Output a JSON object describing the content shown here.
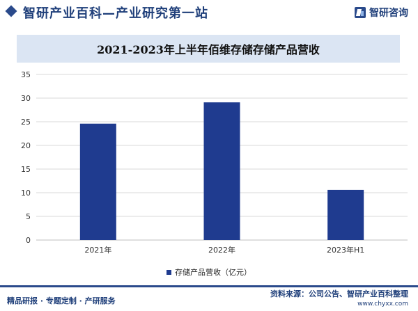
{
  "header": {
    "title": "智研产业百科—产业研究第一站",
    "brand_name": "智研咨询"
  },
  "chart_data": {
    "type": "bar",
    "title": "2021-2023年上半年佰维存储存储产品营收",
    "categories": [
      "2021年",
      "2022年",
      "2023年H1"
    ],
    "series": [
      {
        "name": "存储产品营收（亿元）",
        "values": [
          24.6,
          29.1,
          10.6
        ]
      }
    ],
    "ylim": [
      0,
      35
    ],
    "yticks": [
      0,
      5,
      10,
      15,
      20,
      25,
      30,
      35
    ],
    "xlabel": "",
    "ylabel": "",
    "grid": true,
    "legend_position": "bottom",
    "bar_color": "#1f3b8f",
    "grid_color": "#d9d9d9"
  },
  "footer": {
    "left_text": "精品研报 · 专题定制 · 产研服务",
    "source_text": "资料来源：公司公告、智研产业百科整理",
    "url": "www.chyxx.com"
  }
}
